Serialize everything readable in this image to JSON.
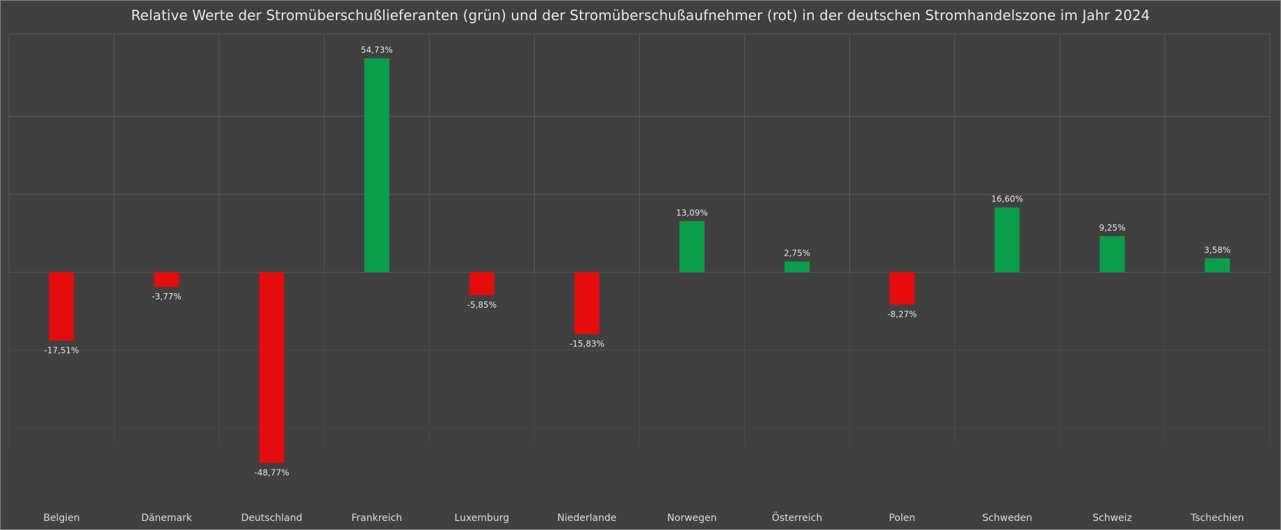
{
  "chart_data": {
    "type": "bar",
    "title": "Relative Werte der Stromüberschußlieferanten (grün) und der Stromüberschußaufnehmer (rot) in der deutschen Stromhandelszone  im Jahr 2024",
    "categories": [
      "Belgien",
      "Dänemark",
      "Deutschland",
      "Frankreich",
      "Luxemburg",
      "Niederlande",
      "Norwegen",
      "Österreich",
      "Polen",
      "Schweden",
      "Schweiz",
      "Tschechien"
    ],
    "values": [
      -17.51,
      -3.77,
      -48.77,
      54.73,
      -5.85,
      -15.83,
      13.09,
      2.75,
      -8.27,
      16.6,
      9.25,
      3.58
    ],
    "data_labels": [
      "-17,51%",
      "-3,77%",
      "-48,77%",
      "54,73%",
      "-5,85%",
      "-15,83%",
      "13,09%",
      "2,75%",
      "-8,27%",
      "16,60%",
      "9,25%",
      "3,58%"
    ],
    "ylim": [
      -60,
      60
    ],
    "grid": true,
    "legend": "none",
    "colors": {
      "positive": "#0a9e4b",
      "negative": "#e30b0b",
      "background": "#404040",
      "grid": "#5a5a5a",
      "text": "#e6e6e6"
    }
  }
}
